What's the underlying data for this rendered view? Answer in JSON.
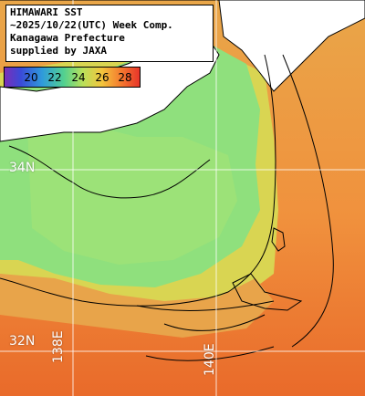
{
  "map": {
    "title_lines": [
      "HIMAWARI SST",
      "~2025/10/22(UTC) Week Comp.",
      "Kanagawa Prefecture",
      "supplied by JAXA"
    ],
    "legend": {
      "labels": [
        "20",
        "22",
        "24",
        "26",
        "28"
      ],
      "colors": [
        "#7a2fb8",
        "#3a4ad8",
        "#2f9bdb",
        "#53d18f",
        "#b9e05a",
        "#f3c53d",
        "#f47b2f",
        "#e8352a"
      ]
    },
    "grid_labels": {
      "lat_north": "34N",
      "lat_south": "32N",
      "lon_west": "138E",
      "lon_east": "140E"
    },
    "colors": {
      "land": "#ffffff",
      "coastline": "#000000",
      "grid": "#ffffff",
      "cool_water": "#8ee07a",
      "warm_water": "#f08a3a"
    }
  }
}
